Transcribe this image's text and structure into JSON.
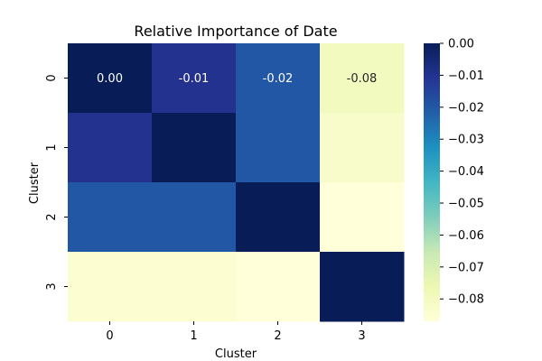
{
  "chart_data": {
    "type": "heatmap",
    "title": "Relative Importance of Date",
    "xlabel": "Cluster",
    "ylabel": "Cluster",
    "x_categories": [
      "0",
      "1",
      "2",
      "3"
    ],
    "y_categories": [
      "0",
      "1",
      "2",
      "3"
    ],
    "values": [
      [
        0.0,
        -0.01,
        -0.02,
        -0.08
      ],
      [
        -0.01,
        0.0,
        -0.02,
        -0.083
      ],
      [
        -0.02,
        -0.02,
        0.0,
        -0.087
      ],
      [
        -0.085,
        -0.085,
        -0.087,
        0.0
      ]
    ],
    "annotations": [
      [
        "0.00",
        "-0.01",
        "-0.02",
        "-0.08"
      ],
      [
        "",
        "",
        "",
        ""
      ],
      [
        "",
        "",
        "",
        ""
      ],
      [
        "",
        "",
        "",
        ""
      ]
    ],
    "colormap": "YlGnBu",
    "colorbar": {
      "range": [
        -0.087,
        0.0
      ],
      "ticks": [
        0.0,
        -0.01,
        -0.02,
        -0.03,
        -0.04,
        -0.05,
        -0.06,
        -0.07,
        -0.08
      ],
      "tick_labels": [
        "0.00",
        "−0.01",
        "−0.02",
        "−0.03",
        "−0.04",
        "−0.05",
        "−0.06",
        "−0.07",
        "−0.08"
      ]
    }
  }
}
